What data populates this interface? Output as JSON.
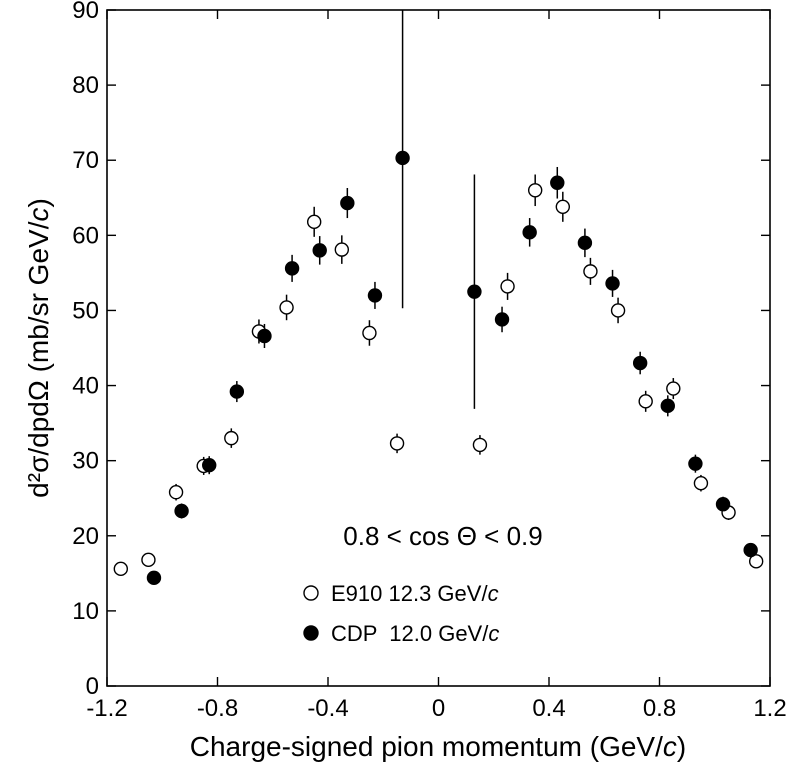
{
  "chart_data": {
    "type": "scatter",
    "title": "",
    "xlabel": "Charge-signed pion momentum (GeV/c)",
    "ylabel": "d²σ/dpdΩ (mb/sr GeV/c)",
    "xlim": [
      -1.2,
      1.2
    ],
    "ylim": [
      0,
      90
    ],
    "xticks": [
      -1.2,
      -0.8,
      -0.4,
      0,
      0.4,
      0.8,
      1.2
    ],
    "xtick_labels": [
      "-1.2",
      "-0.8",
      "-0.4",
      "0",
      "0.4",
      "0.8",
      "1.2"
    ],
    "yticks": [
      0,
      10,
      20,
      30,
      40,
      50,
      60,
      70,
      80,
      90
    ],
    "ytick_labels": [
      "0",
      "10",
      "20",
      "30",
      "40",
      "50",
      "60",
      "70",
      "80",
      "90"
    ],
    "annotation": "0.8 < cos Θ < 0.9",
    "legend_position": "bottom-center",
    "series": [
      {
        "name": "E910 12.3 GeV/c",
        "marker": "open-circle",
        "points": [
          {
            "x": -1.15,
            "y": 15.6,
            "err": 0.9
          },
          {
            "x": -1.05,
            "y": 16.8,
            "err": 0.9
          },
          {
            "x": -0.95,
            "y": 25.8,
            "err": 1.1
          },
          {
            "x": -0.85,
            "y": 29.3,
            "err": 1.2
          },
          {
            "x": -0.75,
            "y": 33.0,
            "err": 1.3
          },
          {
            "x": -0.65,
            "y": 47.2,
            "err": 1.6
          },
          {
            "x": -0.55,
            "y": 50.4,
            "err": 1.7
          },
          {
            "x": -0.45,
            "y": 61.8,
            "err": 2.0
          },
          {
            "x": -0.35,
            "y": 58.1,
            "err": 1.9
          },
          {
            "x": -0.25,
            "y": 47.0,
            "err": 1.7
          },
          {
            "x": -0.15,
            "y": 32.3,
            "err": 1.3
          },
          {
            "x": 0.15,
            "y": 32.1,
            "err": 1.3
          },
          {
            "x": 0.25,
            "y": 53.2,
            "err": 1.8
          },
          {
            "x": 0.35,
            "y": 66.0,
            "err": 2.1
          },
          {
            "x": 0.45,
            "y": 63.8,
            "err": 2.0
          },
          {
            "x": 0.55,
            "y": 55.2,
            "err": 1.8
          },
          {
            "x": 0.65,
            "y": 50.0,
            "err": 1.7
          },
          {
            "x": 0.75,
            "y": 37.9,
            "err": 1.4
          },
          {
            "x": 0.85,
            "y": 39.6,
            "err": 1.4
          },
          {
            "x": 0.95,
            "y": 27.0,
            "err": 1.1
          },
          {
            "x": 1.05,
            "y": 23.1,
            "err": 1.0
          },
          {
            "x": 1.15,
            "y": 16.6,
            "err": 0.9
          }
        ]
      },
      {
        "name": "CDP  12.0 GeV/c",
        "marker": "filled-circle",
        "points": [
          {
            "x": -1.03,
            "y": 14.4,
            "err": 0.8
          },
          {
            "x": -0.93,
            "y": 23.3,
            "err": 1.0
          },
          {
            "x": -0.83,
            "y": 29.4,
            "err": 1.2
          },
          {
            "x": -0.73,
            "y": 39.2,
            "err": 1.4
          },
          {
            "x": -0.63,
            "y": 46.6,
            "err": 1.6
          },
          {
            "x": -0.53,
            "y": 55.6,
            "err": 1.8
          },
          {
            "x": -0.43,
            "y": 58.0,
            "err": 1.9
          },
          {
            "x": -0.33,
            "y": 64.3,
            "err": 2.0
          },
          {
            "x": -0.23,
            "y": 52.0,
            "err": 1.8
          },
          {
            "x": -0.13,
            "y": 70.3,
            "err_low": 20.0,
            "err_high": 20.0
          },
          {
            "x": 0.13,
            "y": 52.5,
            "err_low": 15.6,
            "err_high": 15.6
          },
          {
            "x": 0.23,
            "y": 48.8,
            "err": 1.7
          },
          {
            "x": 0.33,
            "y": 60.4,
            "err": 1.9
          },
          {
            "x": 0.43,
            "y": 67.0,
            "err": 2.1
          },
          {
            "x": 0.53,
            "y": 59.0,
            "err": 1.9
          },
          {
            "x": 0.63,
            "y": 53.6,
            "err": 1.8
          },
          {
            "x": 0.73,
            "y": 43.0,
            "err": 1.5
          },
          {
            "x": 0.83,
            "y": 37.3,
            "err": 1.4
          },
          {
            "x": 0.93,
            "y": 29.6,
            "err": 1.2
          },
          {
            "x": 1.03,
            "y": 24.2,
            "err": 1.0
          },
          {
            "x": 1.13,
            "y": 18.1,
            "err": 0.9
          }
        ]
      }
    ]
  }
}
